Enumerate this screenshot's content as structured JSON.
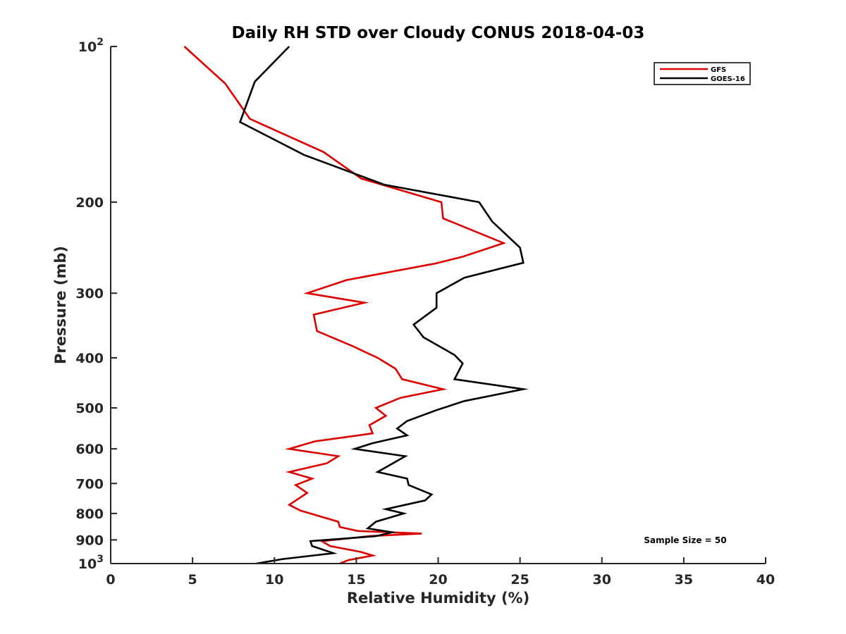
{
  "chart_data": {
    "type": "line",
    "title": "Daily RH STD over Cloudy CONUS 2018-04-03",
    "xlabel": "Relative Humidity (%)",
    "ylabel": "Pressure (mb)",
    "xlim": [
      0,
      40
    ],
    "ylim": [
      100,
      1000
    ],
    "y_scale": "log",
    "y_reversed": true,
    "grid": false,
    "legend_position": "top-right",
    "x_ticks": [
      "0",
      "5",
      "10",
      "15",
      "20",
      "25",
      "30",
      "35",
      "40"
    ],
    "x_tick_values": [
      0,
      5,
      10,
      15,
      20,
      25,
      30,
      35,
      40
    ],
    "y_ticks": [
      {
        "value": 100,
        "base": "10",
        "exp": "2"
      },
      {
        "value": 200,
        "label": "200"
      },
      {
        "value": 300,
        "label": "300"
      },
      {
        "value": 400,
        "label": "400"
      },
      {
        "value": 500,
        "label": "500"
      },
      {
        "value": 600,
        "label": "600"
      },
      {
        "value": 700,
        "label": "700"
      },
      {
        "value": 800,
        "label": "800"
      },
      {
        "value": 900,
        "label": "900"
      },
      {
        "value": 1000,
        "base": "10",
        "exp": "3"
      }
    ],
    "annotation": "Sample Size = 50",
    "series": [
      {
        "name": "GFS",
        "color": "#dd0000",
        "points": [
          {
            "x": 4.5,
            "p": 100
          },
          {
            "x": 7.0,
            "p": 118
          },
          {
            "x": 8.5,
            "p": 138
          },
          {
            "x": 13.0,
            "p": 160
          },
          {
            "x": 15.3,
            "p": 180
          },
          {
            "x": 20.2,
            "p": 200
          },
          {
            "x": 20.3,
            "p": 215
          },
          {
            "x": 24.0,
            "p": 240
          },
          {
            "x": 21.5,
            "p": 255
          },
          {
            "x": 19.8,
            "p": 263
          },
          {
            "x": 14.4,
            "p": 283
          },
          {
            "x": 12.0,
            "p": 300
          },
          {
            "x": 15.5,
            "p": 313
          },
          {
            "x": 12.4,
            "p": 330
          },
          {
            "x": 12.6,
            "p": 355
          },
          {
            "x": 14.8,
            "p": 380
          },
          {
            "x": 16.3,
            "p": 400
          },
          {
            "x": 17.4,
            "p": 420
          },
          {
            "x": 17.8,
            "p": 440
          },
          {
            "x": 20.3,
            "p": 460
          },
          {
            "x": 17.7,
            "p": 478
          },
          {
            "x": 16.2,
            "p": 500
          },
          {
            "x": 16.8,
            "p": 518
          },
          {
            "x": 15.8,
            "p": 540
          },
          {
            "x": 16.0,
            "p": 560
          },
          {
            "x": 12.5,
            "p": 580
          },
          {
            "x": 10.9,
            "p": 600
          },
          {
            "x": 13.9,
            "p": 620
          },
          {
            "x": 13.2,
            "p": 640
          },
          {
            "x": 10.9,
            "p": 665
          },
          {
            "x": 12.3,
            "p": 685
          },
          {
            "x": 11.3,
            "p": 705
          },
          {
            "x": 12.0,
            "p": 730
          },
          {
            "x": 10.9,
            "p": 770
          },
          {
            "x": 11.6,
            "p": 790
          },
          {
            "x": 13.9,
            "p": 830
          },
          {
            "x": 14.0,
            "p": 850
          },
          {
            "x": 15.1,
            "p": 865
          },
          {
            "x": 19.0,
            "p": 875
          },
          {
            "x": 15.8,
            "p": 885
          },
          {
            "x": 12.9,
            "p": 905
          },
          {
            "x": 13.4,
            "p": 925
          },
          {
            "x": 15.3,
            "p": 950
          },
          {
            "x": 16.0,
            "p": 965
          },
          {
            "x": 14.5,
            "p": 985
          },
          {
            "x": 14.0,
            "p": 1000
          }
        ]
      },
      {
        "name": "GOES-16",
        "color": "#000000",
        "points": [
          {
            "x": 10.9,
            "p": 100
          },
          {
            "x": 8.8,
            "p": 117
          },
          {
            "x": 7.9,
            "p": 140
          },
          {
            "x": 11.8,
            "p": 162
          },
          {
            "x": 16.7,
            "p": 185
          },
          {
            "x": 22.5,
            "p": 200
          },
          {
            "x": 23.3,
            "p": 218
          },
          {
            "x": 25.0,
            "p": 245
          },
          {
            "x": 25.2,
            "p": 262
          },
          {
            "x": 21.6,
            "p": 280
          },
          {
            "x": 19.9,
            "p": 300
          },
          {
            "x": 19.9,
            "p": 320
          },
          {
            "x": 18.5,
            "p": 345
          },
          {
            "x": 19.1,
            "p": 365
          },
          {
            "x": 21.0,
            "p": 395
          },
          {
            "x": 21.5,
            "p": 410
          },
          {
            "x": 21.0,
            "p": 440
          },
          {
            "x": 25.2,
            "p": 460
          },
          {
            "x": 21.6,
            "p": 485
          },
          {
            "x": 19.9,
            "p": 505
          },
          {
            "x": 18.1,
            "p": 530
          },
          {
            "x": 17.5,
            "p": 548
          },
          {
            "x": 18.1,
            "p": 565
          },
          {
            "x": 16.0,
            "p": 585
          },
          {
            "x": 14.9,
            "p": 600
          },
          {
            "x": 18.0,
            "p": 620
          },
          {
            "x": 16.3,
            "p": 665
          },
          {
            "x": 18.1,
            "p": 685
          },
          {
            "x": 18.2,
            "p": 705
          },
          {
            "x": 19.6,
            "p": 735
          },
          {
            "x": 19.2,
            "p": 755
          },
          {
            "x": 16.8,
            "p": 785
          },
          {
            "x": 17.9,
            "p": 800
          },
          {
            "x": 16.2,
            "p": 830
          },
          {
            "x": 15.7,
            "p": 855
          },
          {
            "x": 17.2,
            "p": 870
          },
          {
            "x": 16.2,
            "p": 885
          },
          {
            "x": 12.2,
            "p": 905
          },
          {
            "x": 12.3,
            "p": 925
          },
          {
            "x": 13.6,
            "p": 955
          },
          {
            "x": 10.5,
            "p": 980
          },
          {
            "x": 8.9,
            "p": 1000
          }
        ]
      }
    ]
  }
}
